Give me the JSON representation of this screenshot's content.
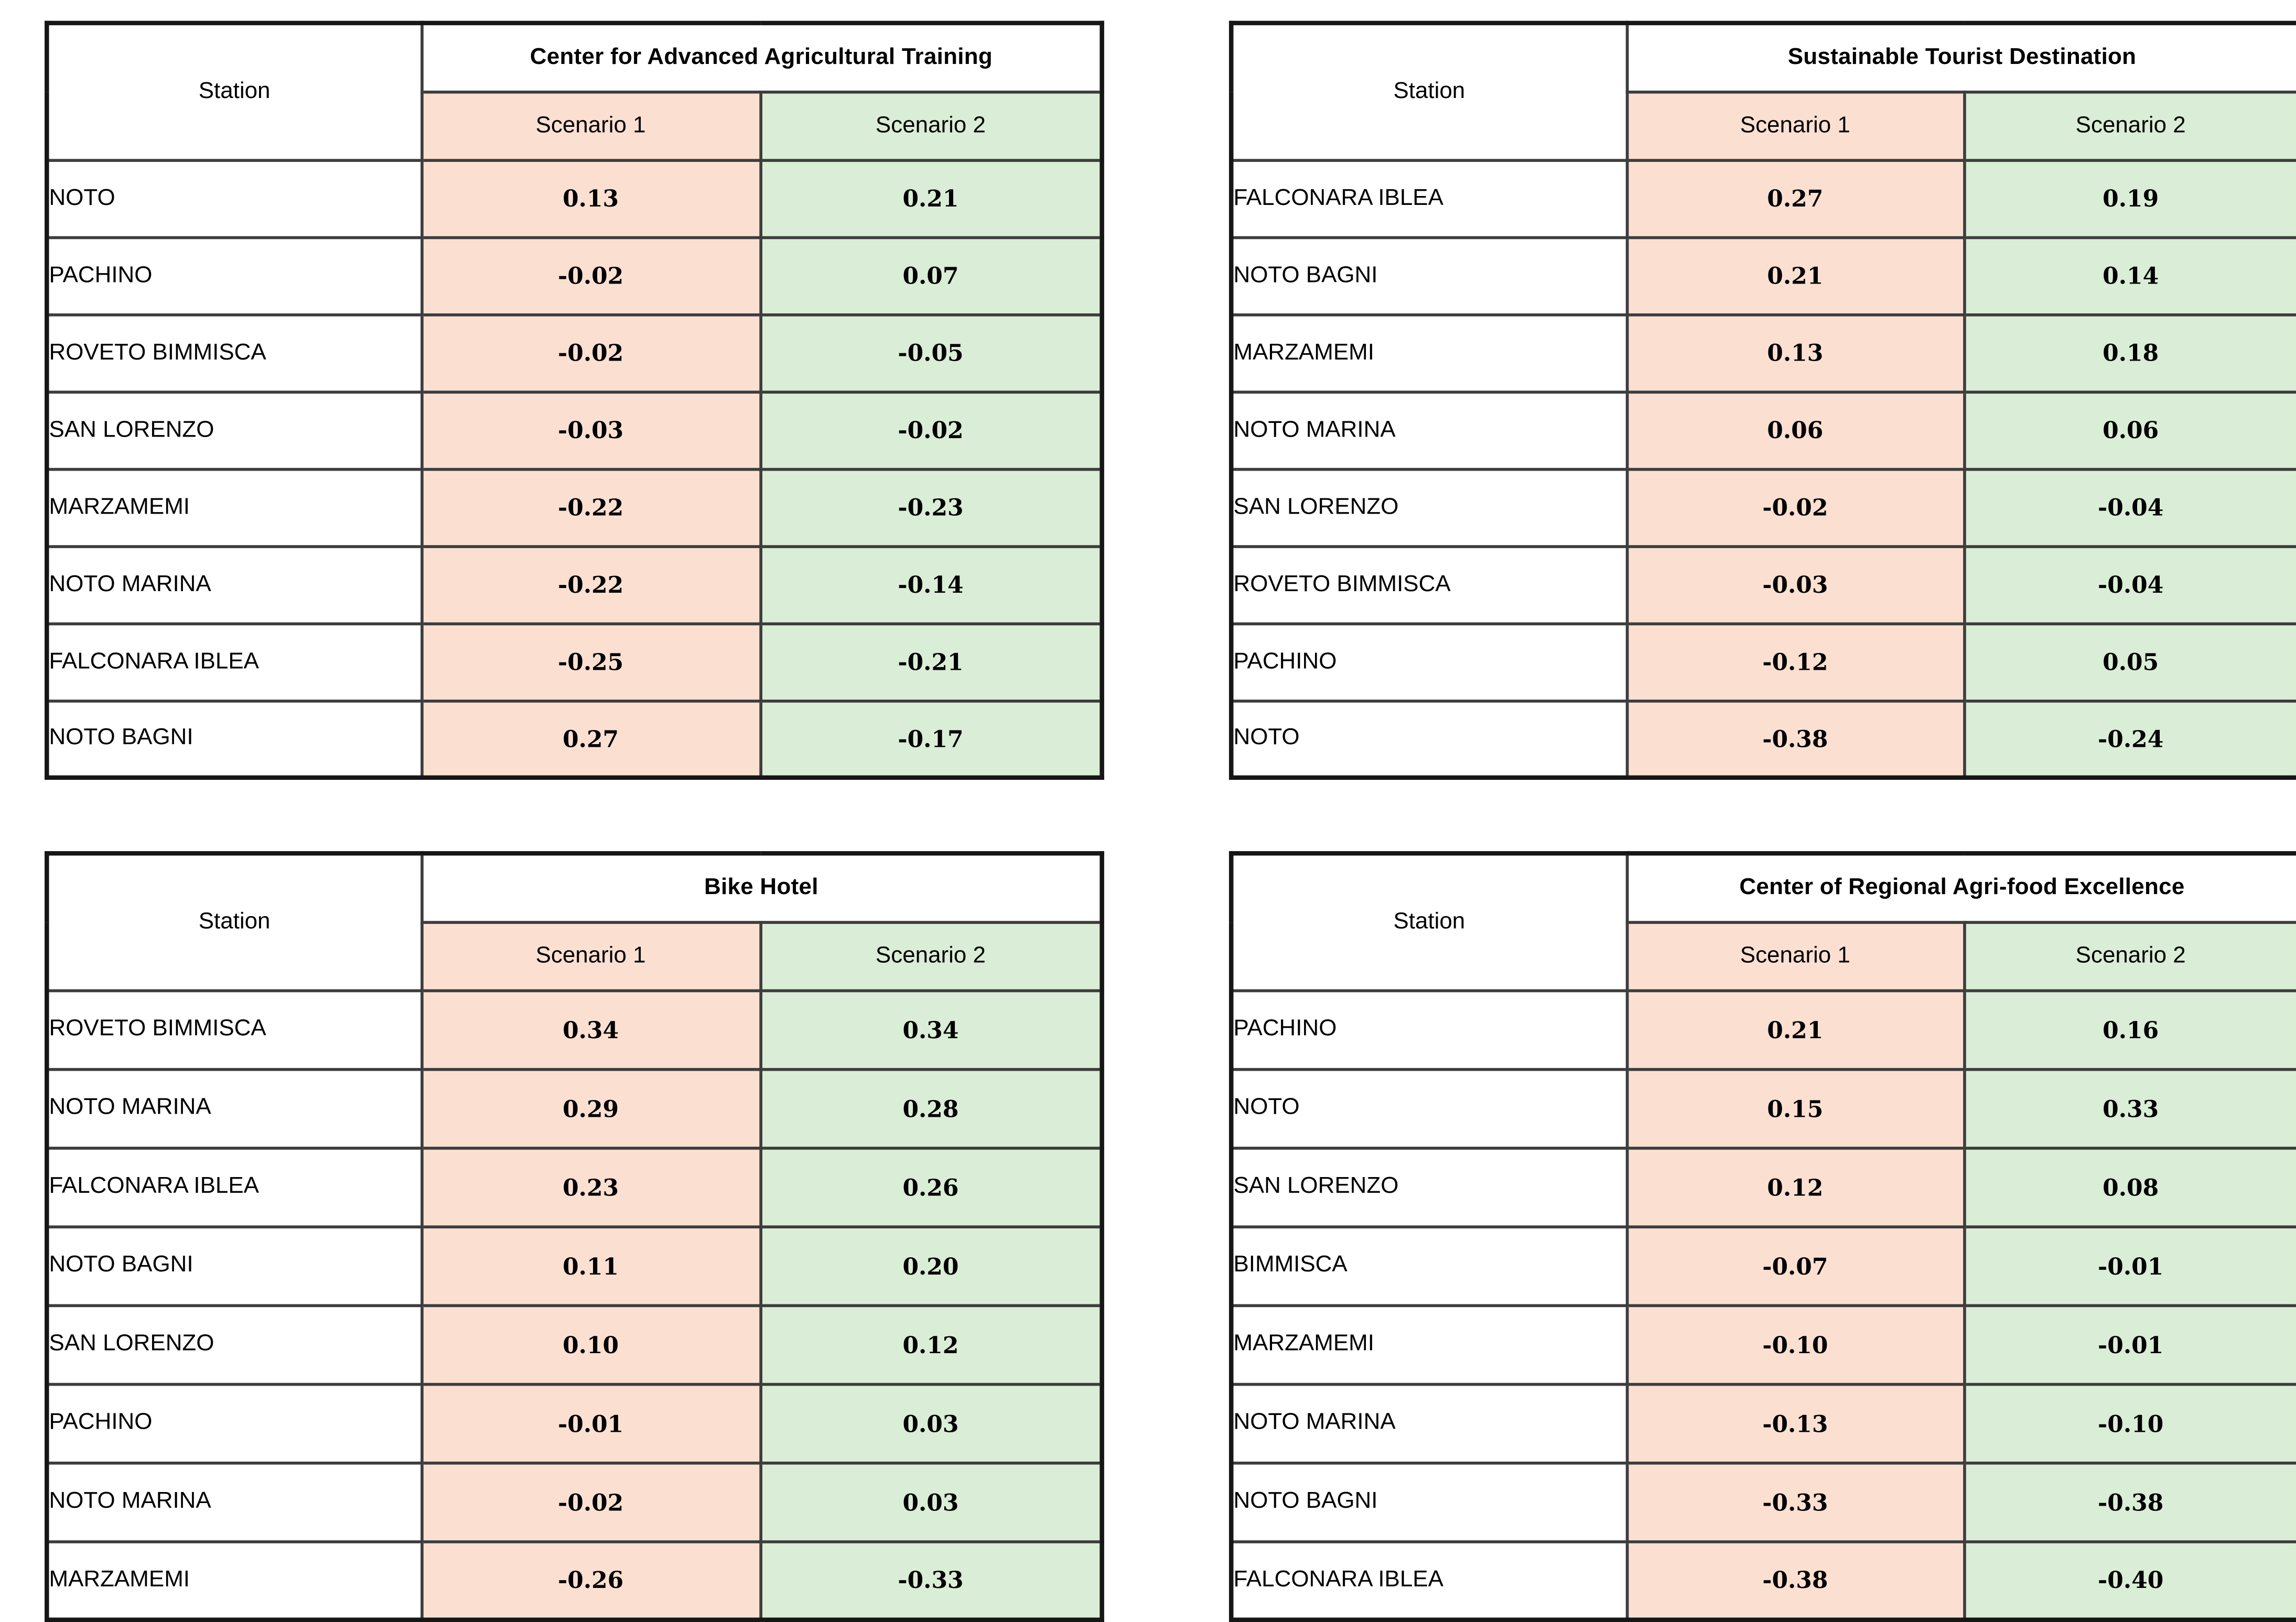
{
  "page": {
    "background": "#ffffff",
    "scenario1_color": "#FBE0D2",
    "scenario2_color": "#DAEDD6",
    "border_color": "#161616",
    "text_color": "#000000"
  },
  "chart_data": [
    {
      "type": "table",
      "title": "Center for Advanced Agricultural Training",
      "columns": [
        "Station",
        "Scenario 1",
        "Scenario 2"
      ],
      "rows": [
        [
          "NOTO",
          "0.13",
          "0.21"
        ],
        [
          "PACHINO",
          "-0.02",
          "0.07"
        ],
        [
          "ROVETO BIMMISCA",
          "-0.02",
          "-0.05"
        ],
        [
          "SAN LORENZO",
          "-0.03",
          "-0.02"
        ],
        [
          "MARZAMEMI",
          "-0.22",
          "-0.23"
        ],
        [
          "NOTO MARINA",
          "-0.22",
          "-0.14"
        ],
        [
          "FALCONARA IBLEA",
          "-0.25",
          "-0.21"
        ],
        [
          "NOTO BAGNI",
          "0.27",
          "-0.17"
        ]
      ]
    },
    {
      "type": "table",
      "title": "Sustainable Tourist Destination",
      "columns": [
        "Station",
        "Scenario 1",
        "Scenario 2"
      ],
      "rows": [
        [
          "FALCONARA IBLEA",
          "0.27",
          "0.19"
        ],
        [
          "NOTO BAGNI",
          "0.21",
          "0.14"
        ],
        [
          "MARZAMEMI",
          "0.13",
          "0.18"
        ],
        [
          "NOTO MARINA",
          "0.06",
          "0.06"
        ],
        [
          "SAN LORENZO",
          "-0.02",
          "-0.04"
        ],
        [
          "ROVETO BIMMISCA",
          "-0.03",
          "-0.04"
        ],
        [
          "PACHINO",
          "-0.12",
          "0.05"
        ],
        [
          "NOTO",
          "-0.38",
          "-0.24"
        ]
      ]
    },
    {
      "type": "table",
      "title": "Bike Hotel",
      "columns": [
        "Station",
        "Scenario 1",
        "Scenario 2"
      ],
      "rows": [
        [
          "ROVETO BIMMISCA",
          "0.34",
          "0.34"
        ],
        [
          "NOTO MARINA",
          "0.29",
          "0.28"
        ],
        [
          "FALCONARA IBLEA",
          "0.23",
          "0.26"
        ],
        [
          "NOTO BAGNI",
          "0.11",
          "0.20"
        ],
        [
          "SAN LORENZO",
          "0.10",
          "0.12"
        ],
        [
          "PACHINO",
          "-0.01",
          "0.03"
        ],
        [
          "NOTO MARINA",
          "-0.02",
          "0.03"
        ],
        [
          "MARZAMEMI",
          "-0.26",
          "-0.33"
        ]
      ]
    },
    {
      "type": "table",
      "title": "Center of Regional Agri-food Excellence",
      "columns": [
        "Station",
        "Scenario 1",
        "Scenario 2"
      ],
      "rows": [
        [
          "PACHINO",
          "0.21",
          "0.16"
        ],
        [
          "NOTO",
          "0.15",
          "0.33"
        ],
        [
          "SAN LORENZO",
          "0.12",
          "0.08"
        ],
        [
          "BIMMISCA",
          "-0.07",
          "-0.01"
        ],
        [
          "MARZAMEMI",
          "-0.10",
          "-0.01"
        ],
        [
          "NOTO MARINA",
          "-0.13",
          "-0.10"
        ],
        [
          "NOTO BAGNI",
          "-0.33",
          "-0.38"
        ],
        [
          "FALCONARA IBLEA",
          "-0.38",
          "-0.40"
        ]
      ]
    }
  ]
}
